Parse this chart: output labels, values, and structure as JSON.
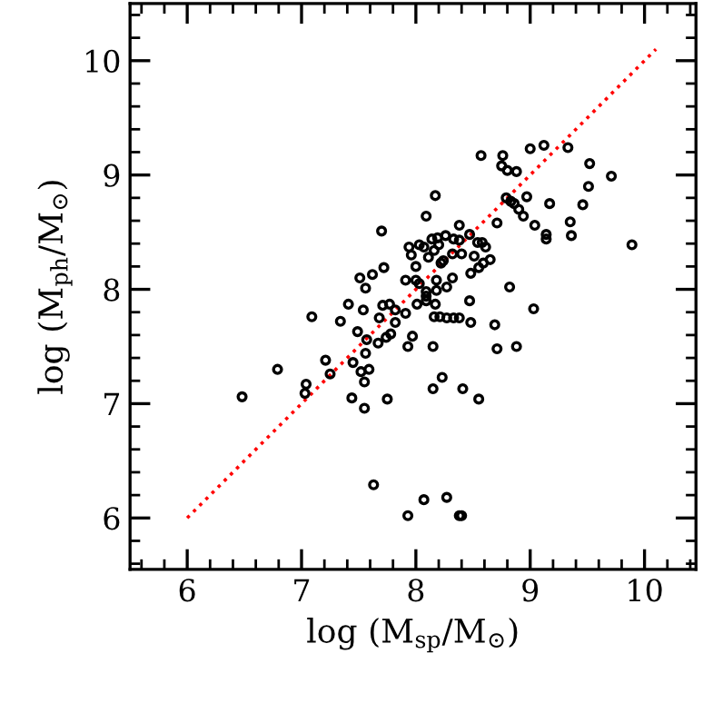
{
  "chart_data": {
    "type": "scatter",
    "xlabel": "log (M$_{sp}$/M$_{⊙}$)",
    "ylabel": "log (M$_{ph}$/M$_{⊙}$)",
    "xlim": [
      5.5,
      10.45
    ],
    "ylim": [
      5.55,
      10.5
    ],
    "xticks": [
      6,
      7,
      8,
      9,
      10
    ],
    "yticks": [
      6,
      7,
      8,
      9,
      10
    ],
    "grid": false,
    "legend": false,
    "series": [
      {
        "color": "#000000",
        "marker": "circle",
        "x": [
          7.7,
          7.72,
          7.62,
          7.51,
          7.56,
          7.41,
          7.54,
          7.71,
          7.77,
          7.09,
          7.34,
          7.68,
          7.82,
          8.57,
          8.76,
          8.75,
          8.8,
          8.88,
          9.0,
          9.12,
          9.33,
          9.52,
          9.71,
          9.51,
          9.46,
          9.35,
          9.36,
          9.14,
          9.14,
          9.17,
          8.97,
          8.79,
          8.83,
          8.86,
          8.9,
          8.94,
          9.04,
          8.71,
          9.89,
          8.17,
          8.09,
          8.38,
          8.47,
          8.26,
          8.14,
          8.19,
          8.33,
          8.38,
          8.54,
          8.58,
          8.61,
          7.94,
          8.03,
          8.07,
          7.96,
          8.11,
          8.16,
          8.2,
          8.32,
          8.4,
          8.24,
          8.22,
          8.51,
          8.65,
          8.59,
          8.55,
          8.0,
          8.48,
          7.91,
          8.0,
          8.03,
          8.18,
          8.32,
          8.18,
          8.27,
          8.82,
          8.09,
          8.09,
          8.09,
          8.01,
          8.47,
          8.17,
          9.03,
          7.82,
          7.91,
          8.16,
          8.21,
          8.27,
          8.33,
          8.38,
          8.48,
          8.69,
          7.57,
          7.67,
          7.74,
          7.78,
          7.97,
          7.93,
          8.15,
          8.71,
          8.88,
          7.56,
          7.59,
          7.55,
          7.75,
          7.55,
          8.23,
          8.15,
          8.41,
          8.55,
          7.63,
          8.07,
          8.27,
          7.93,
          8.38,
          8.4,
          6.48,
          6.79,
          7.04,
          7.03,
          7.21,
          7.25,
          7.45,
          7.49,
          7.52,
          7.44
        ],
        "values": [
          8.51,
          8.19,
          8.13,
          8.1,
          8.01,
          7.87,
          7.82,
          7.86,
          7.87,
          7.76,
          7.72,
          7.75,
          7.71,
          9.17,
          9.17,
          9.08,
          9.04,
          9.03,
          9.23,
          9.26,
          9.24,
          9.1,
          8.99,
          8.9,
          8.74,
          8.59,
          8.47,
          8.48,
          8.44,
          8.75,
          8.81,
          8.8,
          8.77,
          8.75,
          8.7,
          8.64,
          8.56,
          8.58,
          8.39,
          8.82,
          8.64,
          8.56,
          8.48,
          8.47,
          8.44,
          8.45,
          8.44,
          8.43,
          8.41,
          8.41,
          8.37,
          8.37,
          8.39,
          8.37,
          8.3,
          8.28,
          8.34,
          8.39,
          8.31,
          8.31,
          8.25,
          8.23,
          8.29,
          8.26,
          8.23,
          8.19,
          8.2,
          8.14,
          8.08,
          8.08,
          8.05,
          8.08,
          8.1,
          7.99,
          8.02,
          8.02,
          7.98,
          7.94,
          7.9,
          7.87,
          7.9,
          7.87,
          7.83,
          7.82,
          7.79,
          7.76,
          7.76,
          7.75,
          7.75,
          7.75,
          7.71,
          7.69,
          7.56,
          7.53,
          7.58,
          7.61,
          7.59,
          7.5,
          7.5,
          7.48,
          7.5,
          7.44,
          7.3,
          7.19,
          7.04,
          6.96,
          7.23,
          7.13,
          7.13,
          7.04,
          6.29,
          6.16,
          6.18,
          6.02,
          6.02,
          6.02,
          7.06,
          7.3,
          7.17,
          7.09,
          7.38,
          7.26,
          7.36,
          7.63,
          7.28,
          7.05
        ]
      },
      {
        "type": "line",
        "color": "#ff0000",
        "line_style": "dotted",
        "x": [
          6,
          10.1
        ],
        "values": [
          6,
          10.1
        ]
      }
    ]
  }
}
